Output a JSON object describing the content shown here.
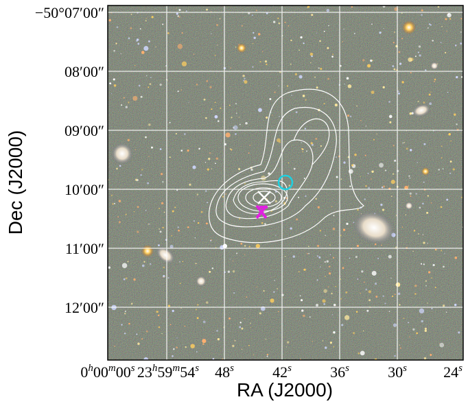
{
  "axes": {
    "xlabel": "RA (J2000)",
    "ylabel": "Dec (J2000)",
    "xticks": [
      [
        "0",
        "h",
        "00",
        "m",
        "00",
        "s"
      ],
      [
        "23",
        "h",
        "59",
        "m",
        "54",
        "s"
      ],
      [
        "48",
        "s"
      ],
      [
        "42",
        "s"
      ],
      [
        "36",
        "s"
      ],
      [
        "30",
        "s"
      ],
      [
        "24",
        "s"
      ]
    ],
    "yticks": [
      "−50°07′00″",
      "08′00″",
      "09′00″",
      "10′00″",
      "11′00″",
      "12′00″"
    ]
  }
}
